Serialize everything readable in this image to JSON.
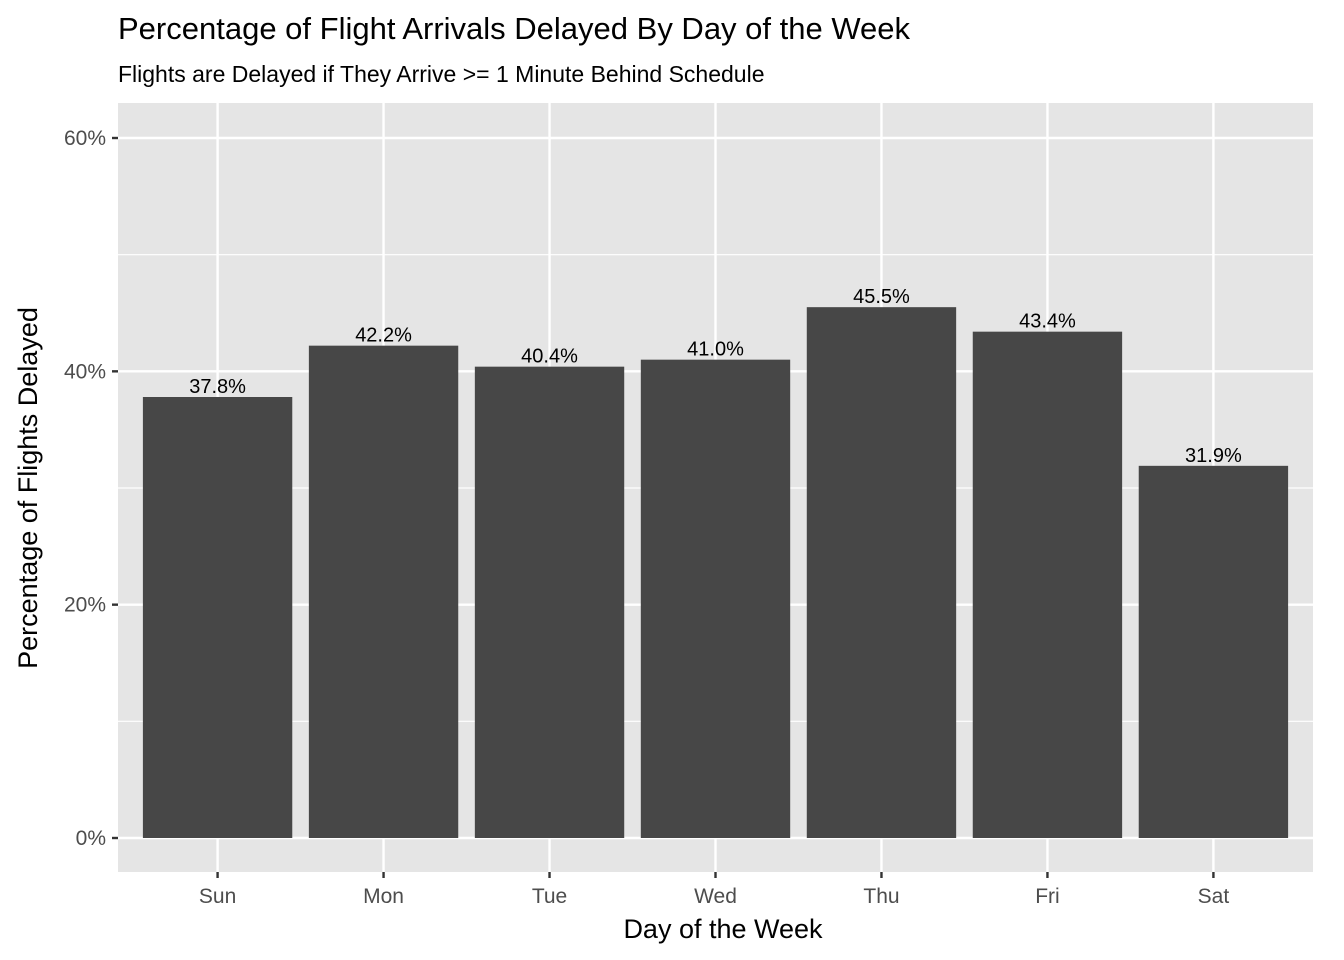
{
  "chart_data": {
    "type": "bar",
    "title": "Percentage of Flight Arrivals Delayed By Day of the Week",
    "subtitle": "Flights are Delayed if They Arrive >= 1 Minute Behind Schedule",
    "xlabel": "Day of the Week",
    "ylabel": "Percentage of Flights Delayed",
    "categories": [
      "Sun",
      "Mon",
      "Tue",
      "Wed",
      "Thu",
      "Fri",
      "Sat"
    ],
    "values": [
      37.8,
      42.2,
      40.4,
      41.0,
      45.5,
      43.4,
      31.9
    ],
    "data_labels": [
      "37.8%",
      "42.2%",
      "40.4%",
      "41.0%",
      "45.5%",
      "43.4%",
      "31.9%"
    ],
    "ylim": [
      0,
      60
    ],
    "yticks": [
      0,
      20,
      40,
      60
    ],
    "ytick_labels": [
      "0%",
      "20%",
      "40%",
      "60%"
    ],
    "grid": true,
    "legend": "none",
    "colors": {
      "bar": "#474747",
      "panel": "#e5e5e5",
      "grid": "#ffffff"
    }
  }
}
